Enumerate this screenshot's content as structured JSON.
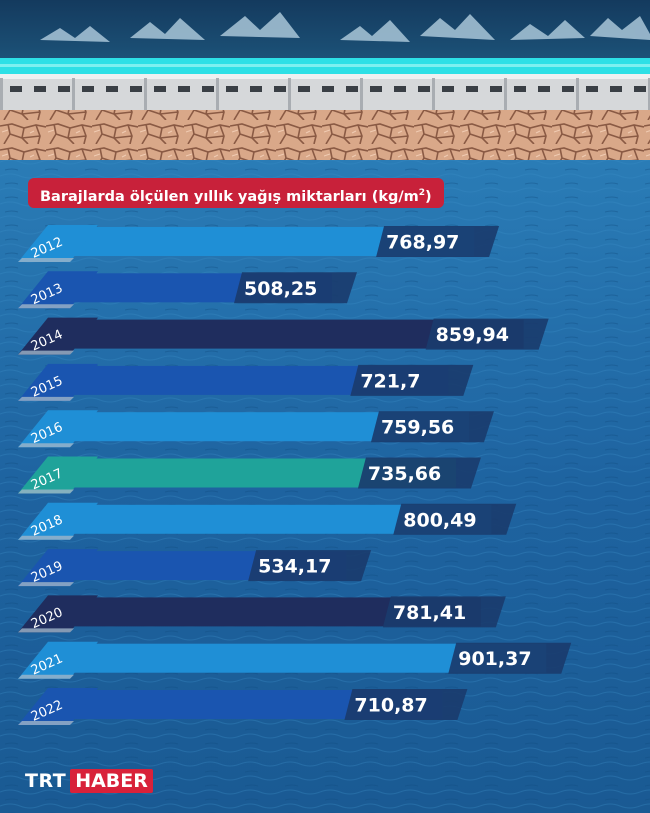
{
  "title": {
    "text": "Barajlarda ölçülen yıllık yağış miktarları (kg/m",
    "sup": "2",
    "close": ")"
  },
  "brand": {
    "part1": "TRT",
    "part2": "HABER"
  },
  "colors": {
    "light": "#1f8fd6",
    "mid": "#1a55b0",
    "dark": "#1f2d5e",
    "teal": "#1fa39a",
    "title_bg": "#c8213a",
    "label_bg": "#1a3c6e"
  },
  "chart_data": {
    "type": "bar",
    "orientation": "horizontal",
    "title": "Barajlarda ölçülen yıllık yağış miktarları (kg/m²)",
    "categories": [
      "2012",
      "2013",
      "2014",
      "2015",
      "2016",
      "2017",
      "2018",
      "2019",
      "2020",
      "2021",
      "2022"
    ],
    "values": [
      768.97,
      508.25,
      859.94,
      721.7,
      759.56,
      735.66,
      800.49,
      534.17,
      781.41,
      901.37,
      710.87
    ],
    "value_labels": [
      "768,97",
      "508,25",
      "859,94",
      "721,7",
      "759,56",
      "735,66",
      "800,49",
      "534,17",
      "781,41",
      "901,37",
      "710,87"
    ],
    "bar_colors": [
      "light",
      "mid",
      "dark",
      "mid",
      "light",
      "teal",
      "light",
      "mid",
      "dark",
      "light",
      "mid"
    ],
    "xlim": [
      0,
      1000
    ],
    "grid": false,
    "legend": "none"
  }
}
